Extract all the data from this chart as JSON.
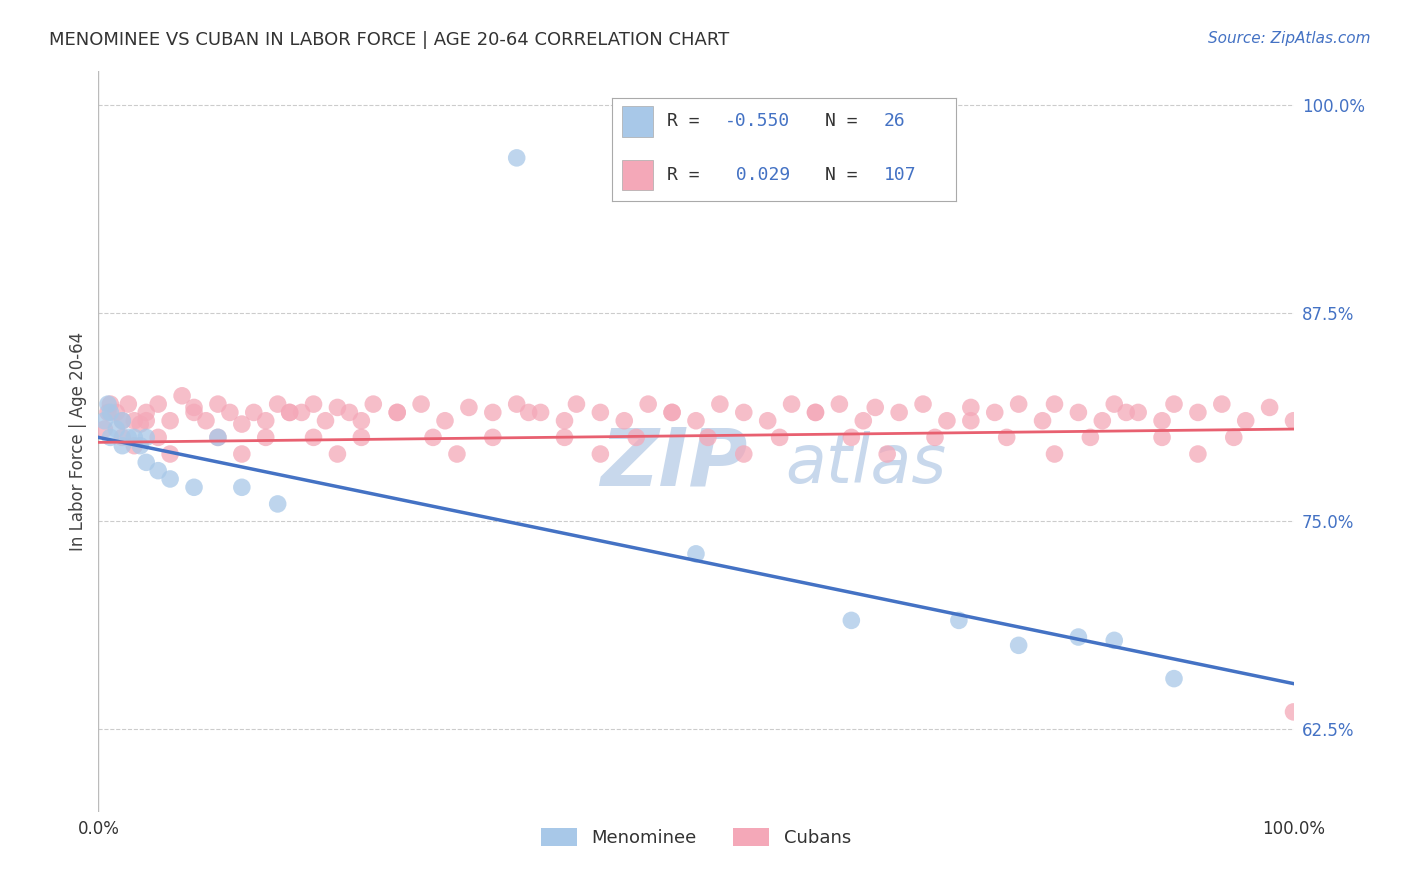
{
  "title": "MENOMINEE VS CUBAN IN LABOR FORCE | AGE 20-64 CORRELATION CHART",
  "source_text": "Source: ZipAtlas.com",
  "ylabel": "In Labor Force | Age 20-64",
  "xlim": [
    0.0,
    1.0
  ],
  "ylim": [
    0.575,
    1.02
  ],
  "yticks": [
    0.625,
    0.75,
    0.875,
    1.0
  ],
  "ytick_labels": [
    "62.5%",
    "75.0%",
    "87.5%",
    "100.0%"
  ],
  "menominee_R": -0.55,
  "menominee_N": 26,
  "cuban_R": 0.029,
  "cuban_N": 107,
  "menominee_color": "#a8c8e8",
  "cuban_color": "#f4a8b8",
  "menominee_line_color": "#4472c4",
  "cuban_line_color": "#e86070",
  "text_color_blue": "#4472c4",
  "watermark_color": "#c8d8ec",
  "background_color": "#ffffff",
  "grid_color": "#cccccc",
  "menominee_line_start": 0.8,
  "menominee_line_end": 0.652,
  "cuban_line_start": 0.797,
  "cuban_line_end": 0.805,
  "menominee_x": [
    0.005,
    0.008,
    0.01,
    0.01,
    0.015,
    0.02,
    0.02,
    0.025,
    0.03,
    0.035,
    0.04,
    0.04,
    0.05,
    0.06,
    0.08,
    0.1,
    0.12,
    0.15,
    0.35,
    0.5,
    0.63,
    0.72,
    0.77,
    0.85,
    0.9,
    0.82
  ],
  "menominee_y": [
    0.81,
    0.82,
    0.815,
    0.8,
    0.805,
    0.81,
    0.795,
    0.8,
    0.8,
    0.795,
    0.8,
    0.785,
    0.78,
    0.775,
    0.77,
    0.8,
    0.77,
    0.76,
    0.968,
    0.73,
    0.69,
    0.69,
    0.675,
    0.678,
    0.655,
    0.68
  ],
  "cuban_x": [
    0.005,
    0.008,
    0.01,
    0.015,
    0.02,
    0.025,
    0.03,
    0.035,
    0.04,
    0.05,
    0.06,
    0.07,
    0.08,
    0.09,
    0.1,
    0.11,
    0.12,
    0.13,
    0.14,
    0.15,
    0.16,
    0.17,
    0.18,
    0.19,
    0.2,
    0.21,
    0.22,
    0.23,
    0.25,
    0.27,
    0.29,
    0.31,
    0.33,
    0.35,
    0.37,
    0.39,
    0.4,
    0.42,
    0.44,
    0.46,
    0.48,
    0.5,
    0.52,
    0.54,
    0.56,
    0.58,
    0.6,
    0.62,
    0.64,
    0.65,
    0.67,
    0.69,
    0.71,
    0.73,
    0.75,
    0.77,
    0.79,
    0.8,
    0.82,
    0.84,
    0.85,
    0.87,
    0.89,
    0.9,
    0.92,
    0.94,
    0.96,
    0.98,
    1.0,
    0.02,
    0.03,
    0.04,
    0.05,
    0.06,
    0.08,
    0.1,
    0.12,
    0.14,
    0.16,
    0.18,
    0.2,
    0.22,
    0.25,
    0.28,
    0.3,
    0.33,
    0.36,
    0.39,
    0.42,
    0.45,
    0.48,
    0.51,
    0.54,
    0.57,
    0.6,
    0.63,
    0.66,
    0.7,
    0.73,
    0.76,
    0.8,
    0.83,
    0.86,
    0.89,
    0.92,
    0.95,
    1.0
  ],
  "cuban_y": [
    0.805,
    0.815,
    0.82,
    0.815,
    0.81,
    0.82,
    0.81,
    0.808,
    0.815,
    0.82,
    0.81,
    0.825,
    0.818,
    0.81,
    0.82,
    0.815,
    0.808,
    0.815,
    0.81,
    0.82,
    0.815,
    0.815,
    0.82,
    0.81,
    0.818,
    0.815,
    0.81,
    0.82,
    0.815,
    0.82,
    0.81,
    0.818,
    0.815,
    0.82,
    0.815,
    0.81,
    0.82,
    0.815,
    0.81,
    0.82,
    0.815,
    0.81,
    0.82,
    0.815,
    0.81,
    0.82,
    0.815,
    0.82,
    0.81,
    0.818,
    0.815,
    0.82,
    0.81,
    0.818,
    0.815,
    0.82,
    0.81,
    0.82,
    0.815,
    0.81,
    0.82,
    0.815,
    0.81,
    0.82,
    0.815,
    0.82,
    0.81,
    0.818,
    0.635,
    0.8,
    0.795,
    0.81,
    0.8,
    0.79,
    0.815,
    0.8,
    0.79,
    0.8,
    0.815,
    0.8,
    0.79,
    0.8,
    0.815,
    0.8,
    0.79,
    0.8,
    0.815,
    0.8,
    0.79,
    0.8,
    0.815,
    0.8,
    0.79,
    0.8,
    0.815,
    0.8,
    0.79,
    0.8,
    0.81,
    0.8,
    0.79,
    0.8,
    0.815,
    0.8,
    0.79,
    0.8,
    0.81
  ]
}
